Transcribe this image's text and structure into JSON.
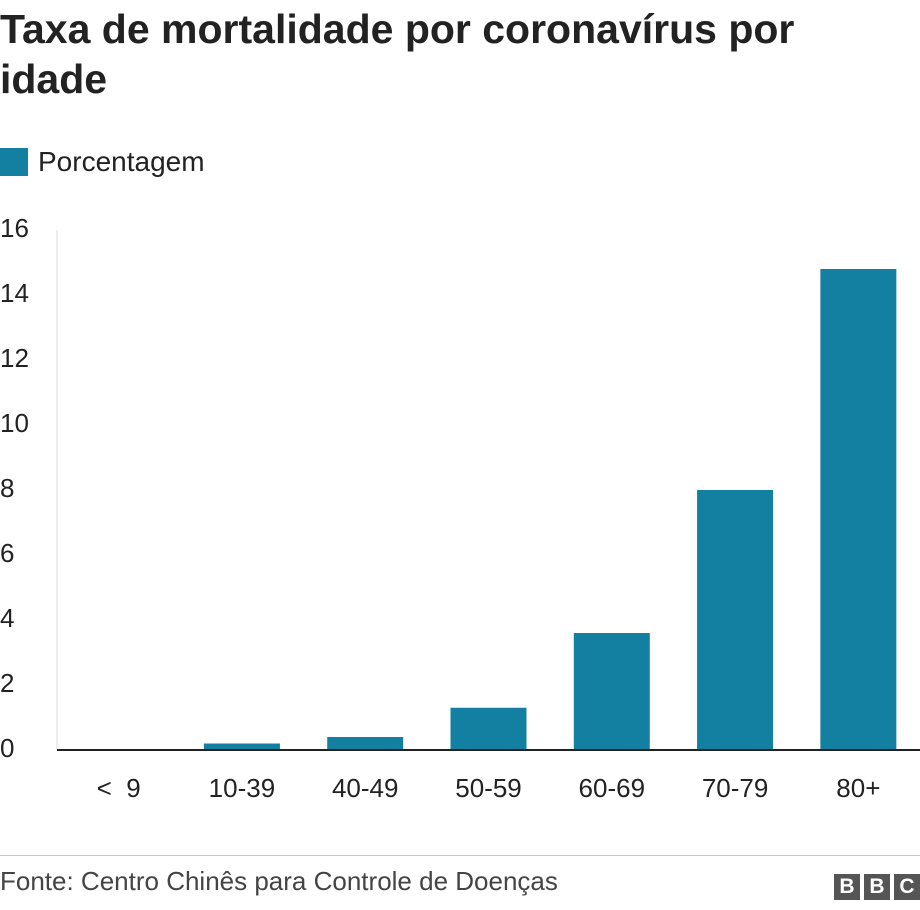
{
  "title": "Taxa de mortalidade por coronavírus por idade",
  "legend": {
    "label": "Porcentagem"
  },
  "source": "Fonte: Centro Chinês para Controle de Doenças",
  "logo": {
    "letters": [
      "B",
      "B",
      "C"
    ]
  },
  "colors": {
    "bar": "#1380a1",
    "axis": "#222222",
    "text": "#222222",
    "tick": "#d9d9d9"
  },
  "chart_data": {
    "type": "bar",
    "categories": [
      "<  9",
      "10-39",
      "40-49",
      "50-59",
      "60-69",
      "70-79",
      "80+"
    ],
    "series": [
      {
        "name": "Porcentagem",
        "values": [
          0,
          0.2,
          0.4,
          1.3,
          3.6,
          8.0,
          14.8
        ]
      }
    ],
    "title": "Taxa de mortalidade por coronavírus por idade",
    "xlabel": "",
    "ylabel": "",
    "ylim": [
      0,
      16
    ],
    "yticks": [
      0,
      2,
      4,
      6,
      8,
      10,
      12,
      14,
      16
    ],
    "legend_position": "top-left",
    "grid": false
  }
}
